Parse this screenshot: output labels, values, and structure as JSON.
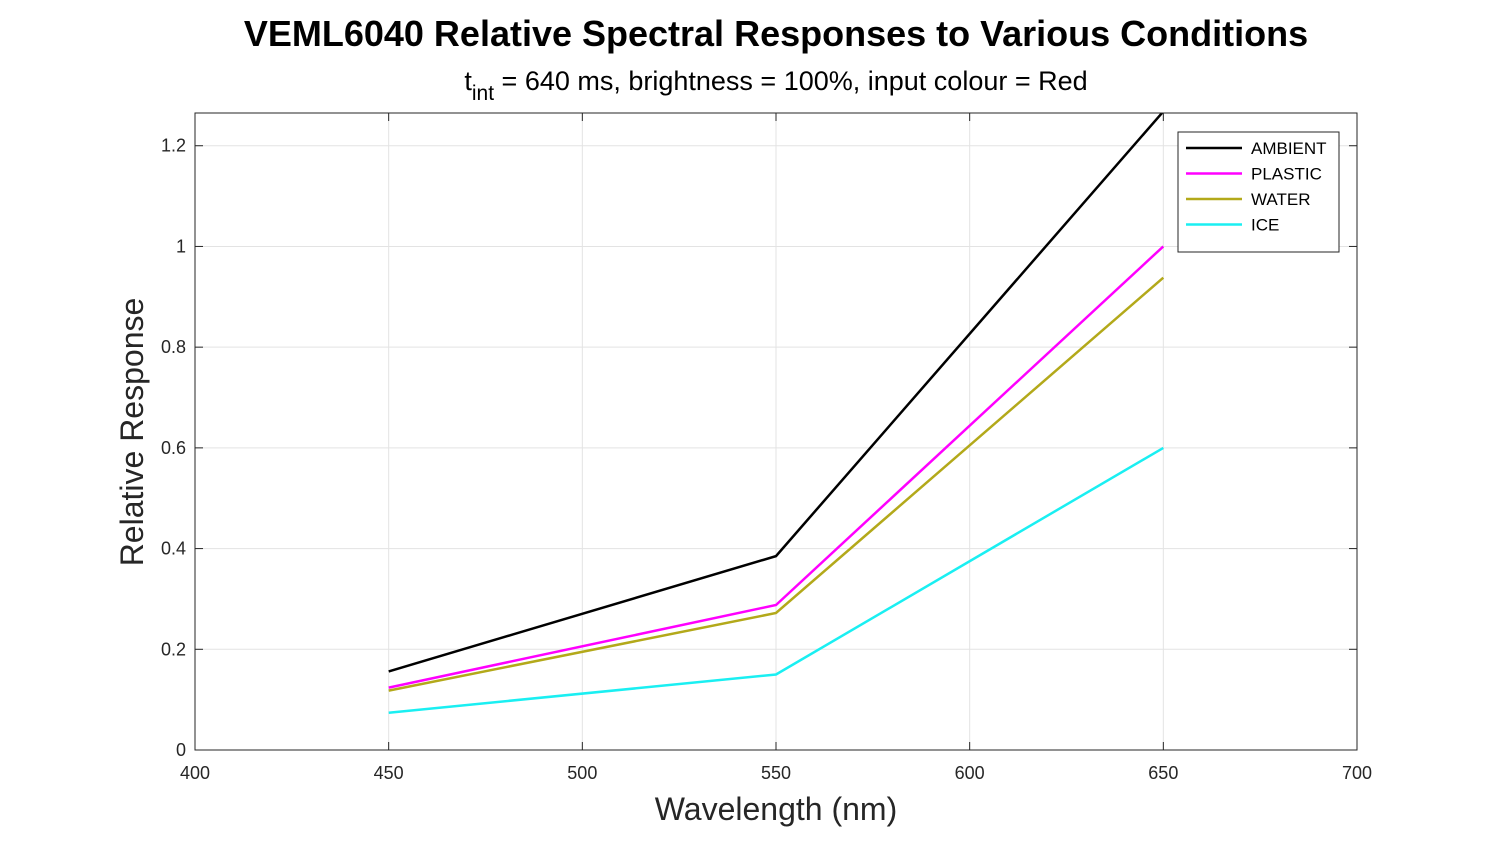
{
  "chart_data": {
    "type": "line",
    "title": "VEML6040 Relative Spectral Responses to Various Conditions",
    "subtitle": {
      "prefix": "t",
      "subscript": "int",
      "text": " = 640 ms, brightness = 100%, input colour = Red"
    },
    "xlabel": "Wavelength (nm)",
    "ylabel": "Relative Response",
    "xlim": [
      400,
      700
    ],
    "ylim": [
      0,
      1.265
    ],
    "xticks": [
      400,
      450,
      500,
      550,
      600,
      650,
      700
    ],
    "xtick_labels": [
      "400",
      "450",
      "500",
      "550",
      "600",
      "650",
      "700"
    ],
    "yticks": [
      0,
      0.2,
      0.4,
      0.6,
      0.8,
      1,
      1.2
    ],
    "ytick_labels": [
      "0",
      "0.2",
      "0.4",
      "0.6",
      "0.8",
      "1",
      "1.2"
    ],
    "grid": true,
    "legend_position": "top-right",
    "x": [
      450,
      550,
      650
    ],
    "series": [
      {
        "name": "AMBIENT",
        "color": "#000000",
        "values": [
          0.156,
          0.385,
          1.268
        ]
      },
      {
        "name": "PLASTIC",
        "color": "#ff00ff",
        "values": [
          0.124,
          0.288,
          1.0
        ]
      },
      {
        "name": "WATER",
        "color": "#b3a91a",
        "values": [
          0.118,
          0.272,
          0.938
        ]
      },
      {
        "name": "ICE",
        "color": "#1aeff2",
        "values": [
          0.074,
          0.15,
          0.6
        ]
      }
    ]
  }
}
